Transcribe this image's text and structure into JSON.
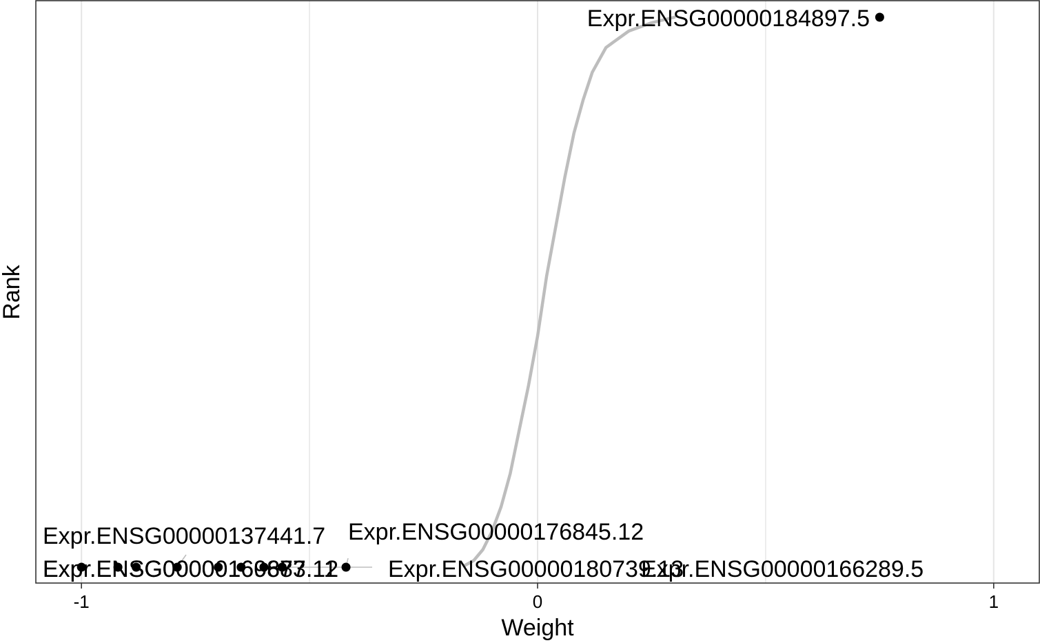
{
  "chart_data": {
    "type": "line",
    "title": "",
    "xlabel": "Weight",
    "ylabel": "Rank",
    "xlim": [
      -1.1,
      1.1
    ],
    "x_ticks": [
      -1,
      0,
      1
    ],
    "x_tick_labels": [
      "-1",
      "0",
      "1"
    ],
    "y_ticks_shown": false,
    "grid": true,
    "legend": "none",
    "colors": {
      "curve": "#bdbdbd",
      "point": "#000000",
      "grid": "#e5e5e5",
      "border": "#333333"
    },
    "series": [
      {
        "points": [
          {
            "x": -0.16,
            "y": 0.003
          },
          {
            "x": -0.14,
            "y": 0.012
          },
          {
            "x": -0.12,
            "y": 0.032
          },
          {
            "x": -0.1,
            "y": 0.065
          },
          {
            "x": -0.08,
            "y": 0.11
          },
          {
            "x": -0.06,
            "y": 0.17
          },
          {
            "x": -0.04,
            "y": 0.25
          },
          {
            "x": -0.02,
            "y": 0.33
          },
          {
            "x": 0.0,
            "y": 0.42
          },
          {
            "x": 0.02,
            "y": 0.53
          },
          {
            "x": 0.04,
            "y": 0.62
          },
          {
            "x": 0.06,
            "y": 0.71
          },
          {
            "x": 0.08,
            "y": 0.79
          },
          {
            "x": 0.1,
            "y": 0.85
          },
          {
            "x": 0.12,
            "y": 0.9
          },
          {
            "x": 0.15,
            "y": 0.945
          },
          {
            "x": 0.2,
            "y": 0.975
          },
          {
            "x": 0.25,
            "y": 0.99
          },
          {
            "x": 0.3,
            "y": 1.0
          }
        ]
      }
    ],
    "labeled_points": [
      {
        "label": "Expr.ENSG00000184897.5",
        "x": 0.75,
        "y": 1.0
      },
      {
        "label": "Expr.ENSG00000137441.7",
        "x": -0.79,
        "y": 0.0
      },
      {
        "label": "Expr.ENSG00000176845.12",
        "x": -0.42,
        "y": 0.0
      },
      {
        "label": "Expr.ENSG00000160877.12",
        "x": -0.92,
        "y": 0.0
      },
      {
        "label": "Expr.ENSG00000169683.11",
        "x": -0.88,
        "y": 0.0
      },
      {
        "label": "Expr.ENSG00000180739.13",
        "x": -0.56,
        "y": 0.0
      },
      {
        "label": "Expr.ENSG00000166289.5",
        "x": -0.6,
        "y": 0.0
      }
    ],
    "unlabeled_points": [
      {
        "x": -1.0,
        "y": 0.0
      },
      {
        "x": -0.7,
        "y": 0.0
      },
      {
        "x": -0.65,
        "y": 0.0
      }
    ]
  }
}
